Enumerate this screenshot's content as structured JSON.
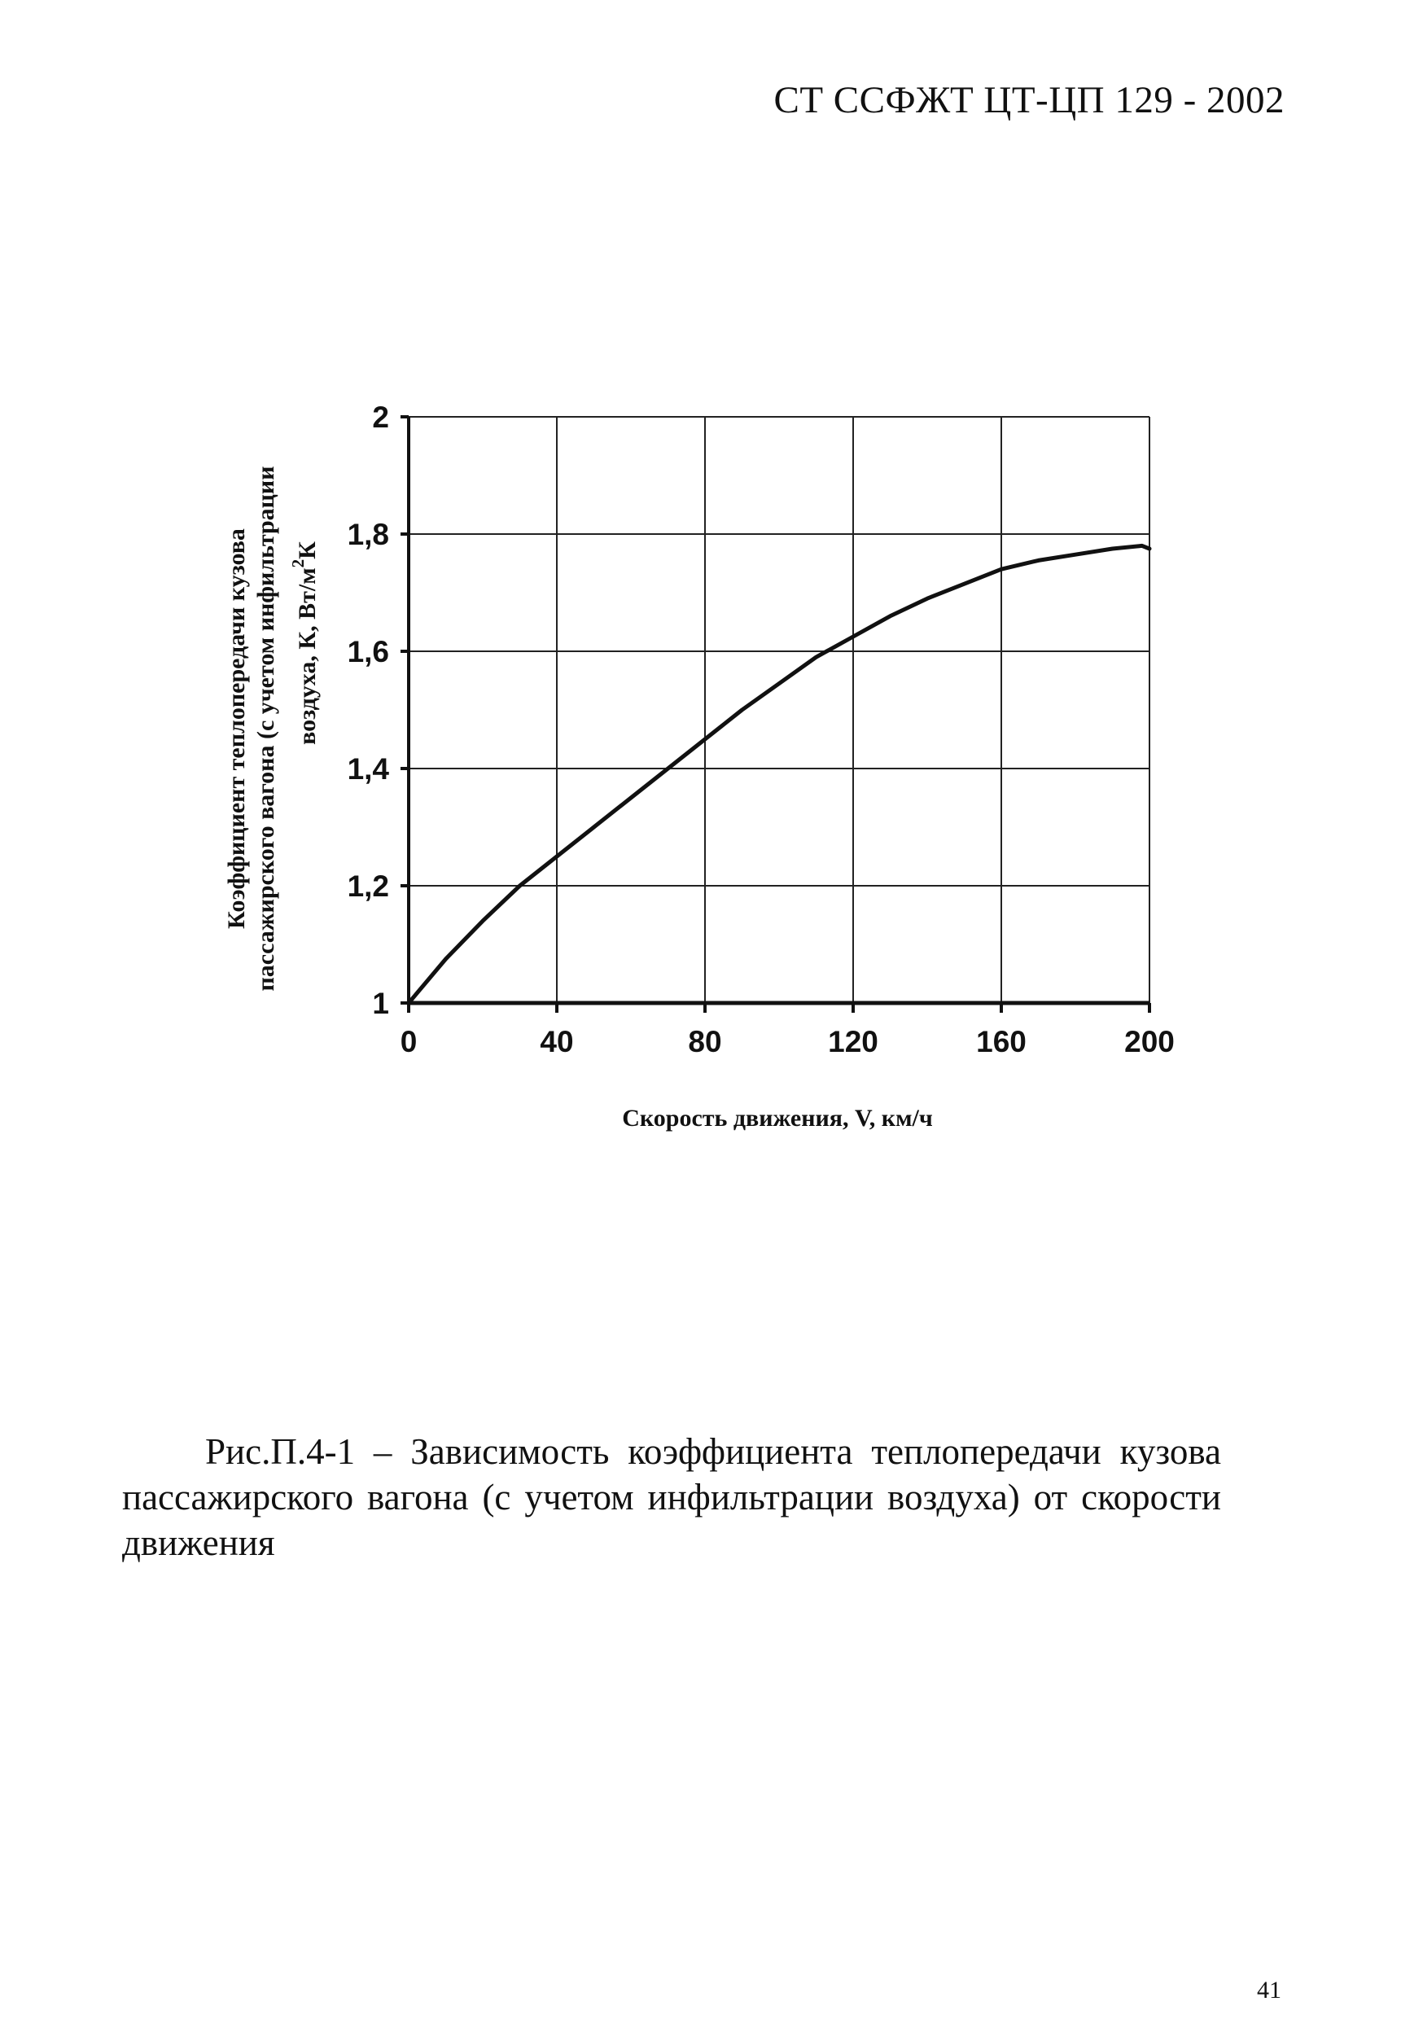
{
  "header": {
    "doc_code": "СТ ССФЖТ ЦТ-ЦП 129 - 2002"
  },
  "chart_data": {
    "type": "line",
    "title": "",
    "xlabel": "Скорость движения, V, км/ч",
    "ylabel_lines": [
      "Коэффициент теплопередачи кузова",
      "пассажирского вагона (с учетом инфильтрации",
      "воздуха, К, Вт/м"
    ],
    "ylabel_superscript": "2",
    "ylabel_suffix": "К",
    "xlim": [
      0,
      200
    ],
    "ylim": [
      1,
      2
    ],
    "x_ticks": [
      "0",
      "40",
      "80",
      "120",
      "160",
      "200"
    ],
    "y_ticks": [
      "2",
      "1,8",
      "1,6",
      "1,4",
      "1,2",
      "1"
    ],
    "grid": {
      "vertical": true,
      "horizontal": true
    },
    "series": [
      {
        "x": [
          0,
          10,
          20,
          30,
          40,
          50,
          60,
          70,
          80,
          90,
          100,
          110,
          120,
          130,
          140,
          150,
          160,
          170,
          180,
          190,
          198,
          200
        ],
        "y": [
          1.0,
          1.075,
          1.14,
          1.2,
          1.25,
          1.3,
          1.35,
          1.4,
          1.45,
          1.5,
          1.545,
          1.59,
          1.625,
          1.66,
          1.69,
          1.715,
          1.74,
          1.755,
          1.765,
          1.775,
          1.78,
          1.775
        ]
      }
    ]
  },
  "caption": {
    "line1_words": [
      "Рис.П.4-1",
      "–",
      "Зависимость",
      "коэффициента",
      "теплопередачи",
      "кузова"
    ],
    "line2_words": [
      "пассажирского",
      "вагона",
      "(с",
      "учетом",
      "инфильтрации",
      "воздуха)",
      "от",
      "скорости"
    ],
    "line3": "движения"
  },
  "page_number": "41"
}
